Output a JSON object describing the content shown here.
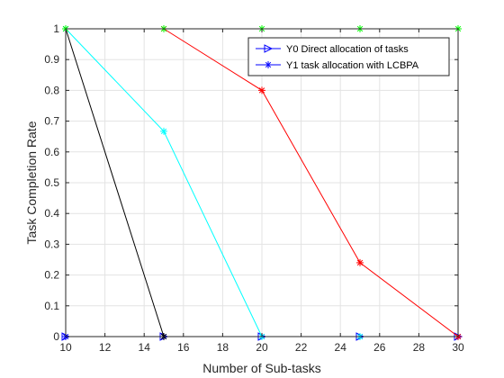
{
  "chart_data": {
    "type": "line",
    "xlabel": "Number of Sub-tasks",
    "ylabel": "Task Completion Rate",
    "xlim": [
      10,
      30
    ],
    "ylim": [
      0,
      1
    ],
    "xticks": [
      10,
      12,
      14,
      16,
      18,
      20,
      22,
      24,
      26,
      28,
      30
    ],
    "yticks": [
      0,
      0.1,
      0.2,
      0.3,
      0.4,
      0.5,
      0.6,
      0.7,
      0.8,
      0.9,
      1
    ],
    "grid": true,
    "legend_position": "top-right",
    "series": [
      {
        "name": "Y0 Direct allocation of tasks",
        "in_legend": true,
        "color": "#0000ff",
        "marker": "triangle-right",
        "x": [
          10,
          15,
          20,
          25,
          30
        ],
        "y": [
          0,
          0,
          0,
          0,
          0
        ]
      },
      {
        "name": "Y1 task allocation with LCBPA",
        "in_legend": true,
        "color": "#0000ff",
        "marker": "asterisk",
        "x": [
          10,
          15,
          20,
          25,
          30
        ],
        "y": [
          0,
          0,
          0,
          0,
          0
        ]
      },
      {
        "name": "black",
        "in_legend": false,
        "color": "#000000",
        "marker": "asterisk",
        "x": [
          10,
          15
        ],
        "y": [
          1,
          0
        ]
      },
      {
        "name": "cyan",
        "in_legend": false,
        "color": "#00ffff",
        "marker": "asterisk",
        "x": [
          10,
          15,
          20,
          25
        ],
        "y": [
          1,
          0.667,
          0,
          0
        ]
      },
      {
        "name": "red",
        "in_legend": false,
        "color": "#ff0000",
        "marker": "asterisk",
        "x": [
          15,
          20,
          25,
          30
        ],
        "y": [
          1,
          0.8,
          0.24,
          0
        ]
      },
      {
        "name": "green",
        "in_legend": false,
        "color": "#00ff00",
        "marker": "asterisk",
        "x": [
          10,
          15,
          20,
          25,
          30
        ],
        "y": [
          1,
          1,
          1,
          1,
          1
        ]
      }
    ]
  }
}
